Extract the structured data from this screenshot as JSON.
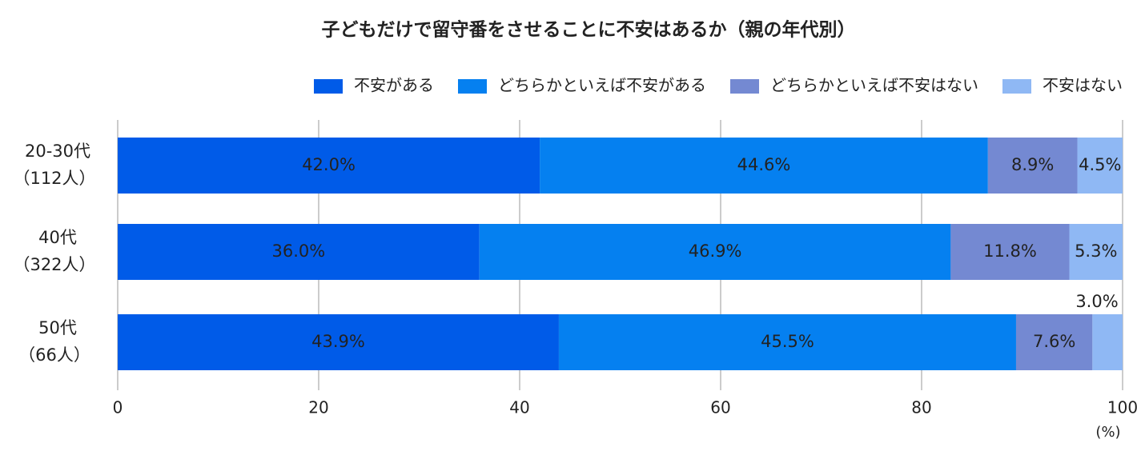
{
  "chart_data": {
    "type": "stacked-bar-horizontal",
    "title": "子どもだけで留守番をさせることに不安はあるか（親の年代別）",
    "categories": [
      "20-30代",
      "40代",
      "50代"
    ],
    "category_sublabels": [
      "（112人）",
      "（322人）",
      "（66人）"
    ],
    "series": [
      {
        "name": "不安がある",
        "color": "#005be8",
        "values": [
          42.0,
          36.0,
          43.9
        ],
        "value_labels": [
          "42.0%",
          "36.0%",
          "43.9%"
        ]
      },
      {
        "name": "どちらかといえば不安がある",
        "color": "#0580f0",
        "values": [
          44.6,
          46.9,
          45.5
        ],
        "value_labels": [
          "44.6%",
          "46.9%",
          "45.5%"
        ]
      },
      {
        "name": "どちらかといえば不安はない",
        "color": "#7489d2",
        "values": [
          8.9,
          11.8,
          7.6
        ],
        "value_labels": [
          "8.9%",
          "11.8%",
          "7.6%"
        ]
      },
      {
        "name": "不安はない",
        "color": "#8fb8f4",
        "values": [
          4.5,
          5.3,
          3.0
        ],
        "value_labels": [
          "4.5%",
          "5.3%",
          "3.0%"
        ]
      }
    ],
    "xlim": [
      0,
      100
    ],
    "xticks": [
      0,
      20,
      40,
      60,
      80,
      100
    ],
    "x_unit": "(%)",
    "grid": true,
    "legend": "top-right"
  }
}
